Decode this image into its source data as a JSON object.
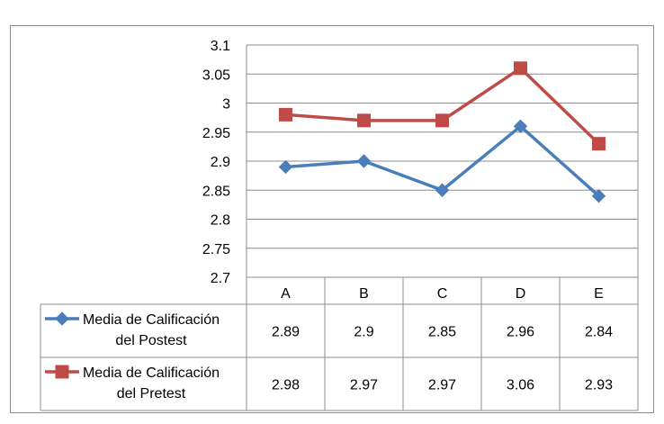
{
  "chart_data": {
    "type": "line",
    "categories": [
      "A",
      "B",
      "C",
      "D",
      "E"
    ],
    "series": [
      {
        "name": "Media de Calificación del Postest",
        "name_lines": [
          "Media de Calificación",
          "del Postest"
        ],
        "values": [
          2.89,
          2.9,
          2.85,
          2.96,
          2.84
        ],
        "display": [
          "2.89",
          "2.9",
          "2.85",
          "2.96",
          "2.84"
        ],
        "color": "#4a7ebb",
        "marker": "diamond"
      },
      {
        "name": "Media de Calificación del Pretest",
        "name_lines": [
          "Media de Calificación",
          "del Pretest"
        ],
        "values": [
          2.98,
          2.97,
          2.97,
          3.06,
          2.93
        ],
        "display": [
          "2.98",
          "2.97",
          "2.97",
          "3.06",
          "2.93"
        ],
        "color": "#be4b48",
        "marker": "square"
      }
    ],
    "ylim": [
      2.7,
      3.1
    ],
    "yticks": [
      "2.7",
      "2.75",
      "2.8",
      "2.85",
      "2.9",
      "2.95",
      "3",
      "3.05",
      "3.1"
    ],
    "grid": true,
    "legend": "data-table"
  }
}
